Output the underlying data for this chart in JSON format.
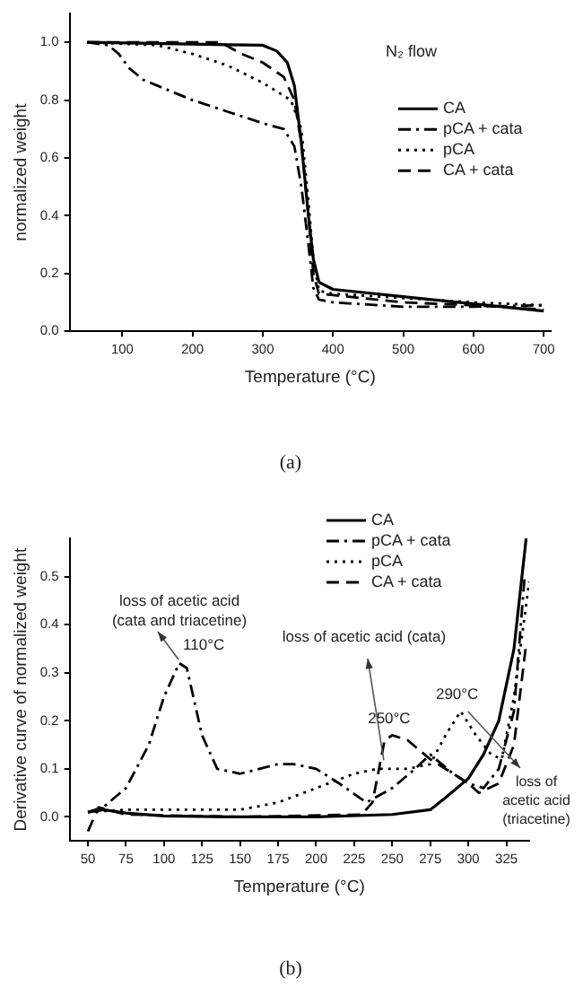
{
  "chart_data": [
    {
      "type": "line",
      "xlabel": "Temperature (°C)",
      "ylabel": "normalized weight",
      "xlim": [
        25,
        710
      ],
      "ylim": [
        0,
        1.1
      ],
      "xticks": [
        100,
        200,
        300,
        400,
        500,
        600,
        700
      ],
      "yticks": [
        {
          "value": 0,
          "label": "0.0"
        },
        {
          "value": 0.2,
          "label": "0.2"
        },
        {
          "value": 0.4,
          "label": "0.4"
        },
        {
          "value": 0.6,
          "label": "0.6"
        },
        {
          "value": 0.8,
          "label": "0.8"
        },
        {
          "value": 1.0,
          "label": "1.0"
        }
      ],
      "grid": false,
      "legend": "right",
      "annotations": [
        "N₂ flow",
        "(a)"
      ],
      "series": [
        {
          "name": "CA",
          "color": "#000000",
          "line_style": "solid",
          "x": [
            50,
            300,
            320,
            335,
            345,
            355,
            365,
            372,
            380,
            400,
            500,
            600,
            700
          ],
          "values": [
            1.0,
            0.99,
            0.97,
            0.93,
            0.85,
            0.65,
            0.4,
            0.25,
            0.17,
            0.145,
            0.12,
            0.095,
            0.07
          ]
        },
        {
          "name": "pCA + cata",
          "color": "#000000",
          "line_style": "dashdot",
          "x": [
            50,
            80,
            95,
            110,
            130,
            200,
            250,
            300,
            330,
            345,
            355,
            365,
            372,
            380,
            400,
            500,
            600,
            700
          ],
          "values": [
            1.0,
            0.99,
            0.96,
            0.91,
            0.87,
            0.8,
            0.76,
            0.72,
            0.7,
            0.64,
            0.5,
            0.3,
            0.15,
            0.11,
            0.1,
            0.085,
            0.085,
            0.09
          ]
        },
        {
          "name": "pCA",
          "color": "#000000",
          "line_style": "dotted",
          "x": [
            50,
            150,
            200,
            250,
            300,
            340,
            355,
            365,
            372,
            380,
            400,
            500,
            600,
            700
          ],
          "values": [
            1.0,
            0.99,
            0.96,
            0.92,
            0.86,
            0.8,
            0.7,
            0.45,
            0.25,
            0.14,
            0.13,
            0.115,
            0.1,
            0.09
          ]
        },
        {
          "name": "CA + cata",
          "color": "#000000",
          "line_style": "dashed",
          "x": [
            50,
            240,
            270,
            300,
            330,
            345,
            355,
            365,
            372,
            380,
            400,
            500,
            600,
            700
          ],
          "values": [
            1.0,
            1.0,
            0.96,
            0.93,
            0.88,
            0.8,
            0.65,
            0.4,
            0.2,
            0.13,
            0.125,
            0.1,
            0.09,
            0.075
          ]
        }
      ]
    },
    {
      "type": "line",
      "xlabel": "Temperature (°C)",
      "ylabel": "Derivative curve of normalized weight",
      "xlim": [
        38,
        340
      ],
      "ylim": [
        -0.05,
        0.58
      ],
      "xticks": [
        50,
        75,
        100,
        125,
        150,
        175,
        200,
        225,
        250,
        275,
        300,
        325
      ],
      "yticks": [
        {
          "value": 0,
          "label": "0.0"
        },
        {
          "value": 0.1,
          "label": "0.1"
        },
        {
          "value": 0.2,
          "label": "0.2"
        },
        {
          "value": 0.3,
          "label": "0.3"
        },
        {
          "value": 0.4,
          "label": "0.4"
        },
        {
          "value": 0.5,
          "label": "0.5"
        }
      ],
      "grid": false,
      "legend": "top right",
      "annotations": [
        "loss of acetic acid (cata and triacetine)",
        {
          "text": "110°C",
          "x": 112,
          "y": 0.32
        },
        "loss of acetic acid (cata)",
        {
          "text": "250°C",
          "x": 248,
          "y": 0.17
        },
        {
          "text": "290°C",
          "x": 295,
          "y": 0.22
        },
        "loss of acetic acid (triacetine)",
        "(b)"
      ],
      "series": [
        {
          "name": "CA",
          "color": "#000000",
          "line_style": "solid",
          "x": [
            50,
            60,
            75,
            100,
            150,
            200,
            250,
            275,
            285,
            300,
            310,
            320,
            330,
            338
          ],
          "values": [
            0.01,
            0.015,
            0.008,
            0.002,
            0.0,
            0.0,
            0.005,
            0.015,
            0.04,
            0.08,
            0.13,
            0.2,
            0.35,
            0.58
          ]
        },
        {
          "name": "pCA + cata",
          "color": "#000000",
          "line_style": "dashdot",
          "x": [
            50,
            60,
            75,
            90,
            100,
            110,
            115,
            125,
            135,
            150,
            175,
            185,
            200,
            215,
            233,
            250,
            265,
            275,
            290,
            300,
            310,
            320,
            330,
            337
          ],
          "values": [
            0.01,
            0.02,
            0.06,
            0.15,
            0.25,
            0.32,
            0.31,
            0.17,
            0.1,
            0.09,
            0.11,
            0.11,
            0.1,
            0.07,
            0.03,
            0.06,
            0.1,
            0.13,
            0.09,
            0.07,
            0.06,
            0.1,
            0.22,
            0.5
          ]
        },
        {
          "name": "pCA",
          "color": "#000000",
          "line_style": "dotted",
          "x": [
            50,
            75,
            150,
            175,
            200,
            225,
            240,
            260,
            275,
            285,
            295,
            305,
            315,
            322,
            330,
            340
          ],
          "values": [
            0.01,
            0.015,
            0.015,
            0.03,
            0.06,
            0.09,
            0.1,
            0.1,
            0.11,
            0.17,
            0.22,
            0.17,
            0.13,
            0.12,
            0.25,
            0.49
          ]
        },
        {
          "name": "CA + cata",
          "color": "#000000",
          "line_style": "dashed",
          "x": [
            50,
            57,
            75,
            150,
            230,
            237,
            245,
            250,
            260,
            275,
            290,
            300,
            307,
            320,
            330,
            338
          ],
          "values": [
            -0.03,
            0.02,
            0.005,
            0.0,
            0.005,
            0.03,
            0.16,
            0.17,
            0.16,
            0.12,
            0.09,
            0.07,
            0.05,
            0.07,
            0.15,
            0.36
          ]
        }
      ]
    }
  ]
}
